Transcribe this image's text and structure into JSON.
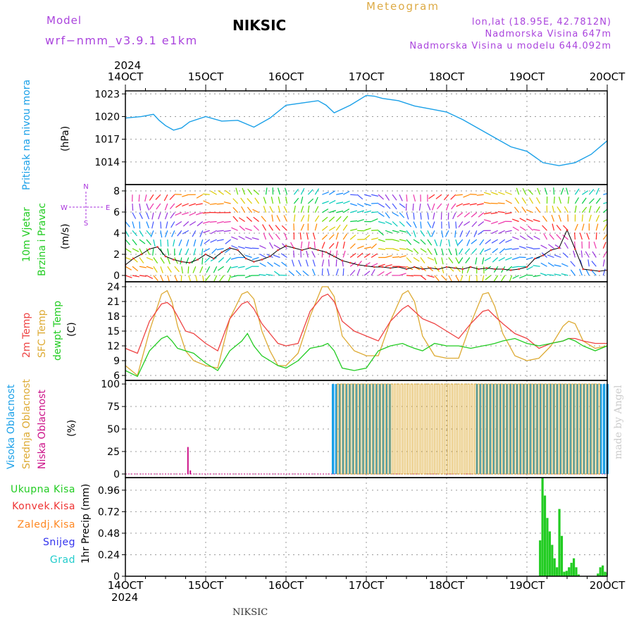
{
  "header": {
    "model_label": "Model",
    "model_name": "wrf−nmm_v3.9.1  e1km",
    "station": "NIKSIC",
    "meteogram_label": "Meteogram",
    "coords": "lon,lat (18.95E, 42.7812N)",
    "elevation": "Nadmorska Visina 647m",
    "model_elevation": "Nadmorska Visina u modelu 644.092m",
    "footer_station": "NIKSIC",
    "credit": "made by Angel"
  },
  "colors": {
    "pressure": "#1aa0e8",
    "temp_2m": "#ee4444",
    "sfc_temp": "#ddaa33",
    "dewpoint": "#22cc22",
    "cloud_high": "#1aa0e8",
    "cloud_mid": "#ddaa33",
    "cloud_low": "#cc1188",
    "precip_total": "#22cc22",
    "precip_conv": "#ee3333",
    "precip_frz": "#ff8822",
    "precip_snow": "#3333ee",
    "precip_hail": "#22cccc",
    "wind_label": "#22cc22",
    "compass": "#aa33dd",
    "model_text": "#aa44dd",
    "meteogram_text": "#ddaa44"
  },
  "chart_data": [
    {
      "type": "line",
      "panel": "pressure",
      "ylabel": [
        "Pritisak na nivou mora",
        "(hPa)"
      ],
      "ylim": [
        1011,
        1023.4
      ],
      "yticks": [
        1014,
        1017,
        1020,
        1023
      ],
      "x_tick_labels": [
        "14OCT",
        "15OCT",
        "16OCT",
        "17OCT",
        "18OCT",
        "19OCT",
        "20OCT"
      ],
      "x_year": "2024",
      "x_range_days": [
        14,
        20
      ],
      "grid": true,
      "series": [
        {
          "x": [
            14.0,
            14.2,
            14.35,
            14.42,
            14.5,
            14.6,
            14.7,
            14.8,
            15.0,
            15.2,
            15.4,
            15.6,
            15.8,
            16.0,
            16.2,
            16.4,
            16.5,
            16.6,
            16.8,
            17.0,
            17.1,
            17.2,
            17.4,
            17.6,
            17.8,
            18.0,
            18.2,
            18.4,
            18.6,
            18.8,
            19.0,
            19.2,
            19.4,
            19.6,
            19.8,
            20.0
          ],
          "y": [
            1019.8,
            1020.0,
            1020.3,
            1019.5,
            1018.8,
            1018.2,
            1018.5,
            1019.3,
            1020.0,
            1019.4,
            1019.5,
            1018.6,
            1019.8,
            1021.5,
            1021.8,
            1022.1,
            1021.5,
            1020.5,
            1021.5,
            1022.8,
            1022.7,
            1022.4,
            1022.1,
            1021.4,
            1021.0,
            1020.6,
            1019.6,
            1018.4,
            1017.2,
            1016.0,
            1015.4,
            1013.9,
            1013.5,
            1013.9,
            1015.0,
            1016.8
          ]
        }
      ]
    },
    {
      "type": "scatter",
      "panel": "wind",
      "ylabel": [
        "10m Vjetar",
        "Brzina i Pravac",
        "(m/s)"
      ],
      "compass_labels": {
        "n": "N",
        "s": "S",
        "w": "W",
        "e": "E"
      },
      "ylim": [
        -0.6,
        8.6
      ],
      "yticks": [
        0,
        2,
        4,
        6,
        8
      ],
      "grid": true,
      "series": [
        {
          "name": "speed",
          "x": [
            14.0,
            14.1,
            14.2,
            14.3,
            14.4,
            14.5,
            14.6,
            14.7,
            14.8,
            14.9,
            15.0,
            15.1,
            15.2,
            15.3,
            15.4,
            15.5,
            15.6,
            15.7,
            15.8,
            15.9,
            16.0,
            16.1,
            16.2,
            16.3,
            16.4,
            16.5,
            16.6,
            16.7,
            16.8,
            16.9,
            17.0,
            17.1,
            17.2,
            17.3,
            17.4,
            17.5,
            17.6,
            17.7,
            17.8,
            17.9,
            18.0,
            18.1,
            18.2,
            18.3,
            18.4,
            18.5,
            18.6,
            18.7,
            18.8,
            18.9,
            19.0,
            19.1,
            19.2,
            19.3,
            19.4,
            19.5,
            19.6,
            19.7,
            19.8,
            19.9,
            20.0
          ],
          "y": [
            1.0,
            1.6,
            2.0,
            2.5,
            2.7,
            1.8,
            1.5,
            1.3,
            1.2,
            1.5,
            2.0,
            1.6,
            2.2,
            2.6,
            2.4,
            1.6,
            1.3,
            1.5,
            1.8,
            2.4,
            2.8,
            2.6,
            2.4,
            2.6,
            2.4,
            2.2,
            1.8,
            1.4,
            1.2,
            1.0,
            0.9,
            0.8,
            0.8,
            0.7,
            0.8,
            0.6,
            0.8,
            0.6,
            0.7,
            0.6,
            0.8,
            0.7,
            0.6,
            0.8,
            0.6,
            0.7,
            0.6,
            0.6,
            0.5,
            0.6,
            0.8,
            1.6,
            1.9,
            2.4,
            2.6,
            4.3,
            2.5,
            0.6,
            0.5,
            0.4,
            0.5
          ]
        }
      ]
    },
    {
      "type": "line",
      "panel": "temperature",
      "ylabel": [
        "2m Temp",
        "SFC Temp",
        "dewpt Temp",
        "(C)"
      ],
      "ylim": [
        5,
        25
      ],
      "yticks": [
        6,
        9,
        12,
        15,
        18,
        21,
        24
      ],
      "grid": true,
      "series": [
        {
          "name": "2m Temp",
          "x": [
            14.0,
            14.15,
            14.3,
            14.45,
            14.52,
            14.58,
            14.65,
            14.75,
            14.85,
            15.0,
            15.15,
            15.3,
            15.45,
            15.52,
            15.6,
            15.7,
            15.8,
            15.9,
            16.0,
            16.15,
            16.3,
            16.45,
            16.52,
            16.6,
            16.7,
            16.85,
            17.0,
            17.15,
            17.3,
            17.45,
            17.52,
            17.6,
            17.7,
            17.85,
            18.0,
            18.15,
            18.3,
            18.45,
            18.52,
            18.6,
            18.7,
            18.85,
            19.0,
            19.15,
            19.3,
            19.45,
            19.52,
            19.6,
            19.7,
            19.85,
            20.0
          ],
          "y": [
            11.5,
            10.5,
            17.0,
            20.5,
            20.8,
            20.0,
            18.0,
            15.0,
            14.5,
            12.5,
            11.0,
            17.5,
            20.5,
            21.0,
            19.5,
            16.5,
            14.5,
            12.5,
            12.0,
            12.5,
            19.0,
            22.0,
            22.5,
            21.0,
            17.0,
            15.0,
            14.0,
            13.0,
            17.0,
            19.5,
            20.2,
            19.0,
            17.5,
            16.5,
            15.0,
            13.5,
            16.5,
            19.0,
            19.3,
            18.0,
            16.5,
            14.5,
            13.5,
            11.5,
            12.5,
            13.0,
            13.5,
            13.5,
            13.0,
            12.5,
            12.5
          ]
        },
        {
          "name": "SFC Temp",
          "x": [
            14.0,
            14.15,
            14.3,
            14.45,
            14.52,
            14.58,
            14.65,
            14.75,
            14.85,
            15.0,
            15.15,
            15.3,
            15.45,
            15.52,
            15.6,
            15.7,
            15.8,
            15.9,
            16.0,
            16.15,
            16.3,
            16.45,
            16.52,
            16.6,
            16.7,
            16.85,
            17.0,
            17.15,
            17.3,
            17.45,
            17.52,
            17.6,
            17.7,
            17.85,
            18.0,
            18.15,
            18.3,
            18.45,
            18.52,
            18.6,
            18.7,
            18.85,
            19.0,
            19.15,
            19.3,
            19.45,
            19.52,
            19.6,
            19.7,
            19.85,
            20.0
          ],
          "y": [
            8.0,
            6.0,
            15.0,
            22.5,
            23.2,
            21.0,
            16.0,
            11.0,
            9.0,
            8.0,
            7.5,
            17.5,
            22.5,
            23.0,
            21.5,
            15.0,
            11.0,
            8.0,
            8.0,
            10.5,
            18.0,
            24.0,
            24.0,
            22.0,
            14.0,
            11.0,
            10.0,
            10.0,
            17.0,
            22.5,
            23.2,
            21.0,
            14.0,
            10.0,
            9.5,
            9.5,
            16.5,
            22.5,
            22.8,
            20.0,
            14.5,
            10.0,
            9.0,
            9.5,
            12.0,
            16.0,
            17.0,
            16.5,
            13.0,
            11.5,
            12.0
          ]
        },
        {
          "name": "dewpt Temp",
          "x": [
            14.0,
            14.15,
            14.3,
            14.45,
            14.52,
            14.58,
            14.65,
            14.75,
            14.85,
            15.0,
            15.15,
            15.3,
            15.45,
            15.52,
            15.6,
            15.7,
            15.8,
            15.9,
            16.0,
            16.15,
            16.3,
            16.45,
            16.52,
            16.6,
            16.7,
            16.85,
            17.0,
            17.15,
            17.3,
            17.45,
            17.52,
            17.6,
            17.7,
            17.85,
            18.0,
            18.15,
            18.3,
            18.45,
            18.52,
            18.6,
            18.7,
            18.85,
            19.0,
            19.15,
            19.3,
            19.45,
            19.52,
            19.6,
            19.7,
            19.85,
            20.0
          ],
          "y": [
            7.0,
            5.8,
            11.0,
            13.5,
            14.0,
            13.0,
            11.5,
            11.0,
            10.5,
            8.5,
            7.0,
            11.0,
            13.0,
            14.5,
            12.0,
            10.0,
            9.0,
            8.0,
            7.5,
            9.0,
            11.5,
            12.0,
            12.5,
            11.0,
            7.5,
            7.0,
            7.5,
            11.0,
            12.0,
            12.5,
            12.0,
            11.5,
            11.0,
            12.5,
            12.0,
            12.0,
            11.5,
            12.0,
            12.2,
            12.5,
            13.0,
            13.5,
            12.5,
            12.0,
            12.5,
            13.0,
            13.5,
            13.0,
            12.0,
            11.0,
            12.0
          ]
        }
      ]
    },
    {
      "type": "bar",
      "panel": "clouds",
      "ylabel": [
        "Visoka Oblacnost",
        "Srednja Oblacnost",
        "Niska Oblacnost",
        "(%)"
      ],
      "ylim": [
        -4,
        104
      ],
      "yticks": [
        0,
        25,
        50,
        75,
        100
      ],
      "grid": true,
      "series": [
        {
          "name": "Niska Oblacnost",
          "x": [
            14.77,
            14.8
          ],
          "values": [
            30,
            4
          ]
        },
        {
          "name": "Visoka Oblacnost",
          "x_range": [
            16.57,
            19.99
          ],
          "typical": 100,
          "gap_range": [
            17.3,
            18.35
          ],
          "gap_value": 0
        },
        {
          "name": "Srednja Oblacnost",
          "x_range": [
            16.62,
            19.9
          ],
          "typical": 100
        }
      ]
    },
    {
      "type": "bar",
      "panel": "precipitation",
      "ylabel": [
        "1hr Precip (mm)"
      ],
      "legend": [
        "Ukupna Kisa",
        "Konvek.Kisa",
        "Zaledj.Kisa",
        "Snijeg",
        "Grad"
      ],
      "legend_placement": "left",
      "ylim": [
        0,
        1.1
      ],
      "yticks": [
        0,
        0.24,
        0.48,
        0.72,
        0.96
      ],
      "grid": true,
      "series": [
        {
          "name": "Ukupna Kisa",
          "x": [
            19.15,
            19.18,
            19.21,
            19.24,
            19.27,
            19.3,
            19.33,
            19.36,
            19.39,
            19.42,
            19.45,
            19.48,
            19.51,
            19.54,
            19.57,
            19.6,
            19.63,
            19.66,
            19.69,
            19.72,
            19.75,
            19.78,
            19.81,
            19.84,
            19.87,
            19.9,
            19.93,
            19.96,
            19.99
          ],
          "values": [
            0.4,
            1.1,
            0.9,
            0.65,
            0.5,
            0.35,
            0.2,
            0.1,
            0.75,
            0.45,
            0.05,
            0.06,
            0.1,
            0.15,
            0.2,
            0.1,
            0.02,
            0.0,
            0.0,
            0.0,
            0.0,
            0.0,
            0.0,
            0.0,
            0.03,
            0.1,
            0.12,
            0.05,
            0.04
          ]
        }
      ]
    }
  ]
}
